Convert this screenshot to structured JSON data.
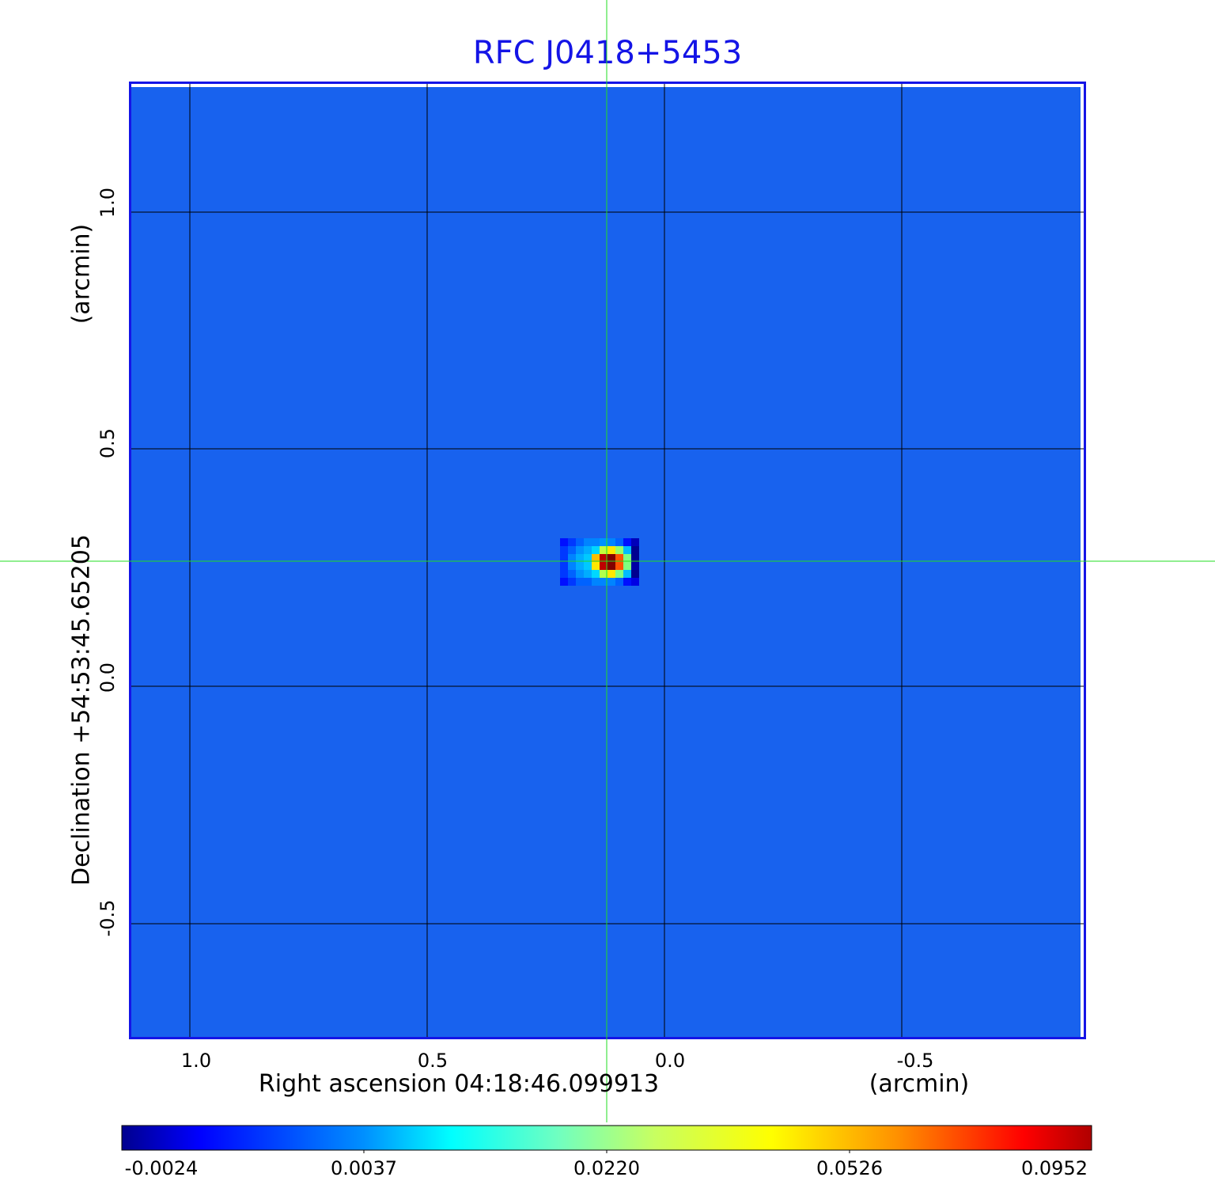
{
  "title": "RFC J0418+5453",
  "x_axis": {
    "label": "Right ascension  04:18:46.099913",
    "unit_label": "(arcmin)",
    "ticks": [
      "1.0",
      "0.5",
      "0.0",
      "-0.5"
    ]
  },
  "y_axis": {
    "label": "Declination  +54:53:45.65205",
    "unit_label": "(arcmin)",
    "ticks": [
      "1.0",
      "0.5",
      "0.0",
      "-0.5"
    ]
  },
  "colorbar": {
    "ticks": [
      "-0.0024",
      "0.0037",
      "0.0220",
      "0.0526",
      "0.0952"
    ]
  },
  "chart_data": {
    "type": "heatmap",
    "title": "RFC J0418+5453",
    "xlabel": "Right ascension  04:18:46.099913 (arcmin)",
    "ylabel": "Declination  +54:53:45.65205 (arcmin)",
    "x_ticks": [
      1.0,
      0.5,
      0.0,
      -0.5
    ],
    "y_ticks": [
      1.0,
      0.5,
      0.0,
      -0.5
    ],
    "xlim": [
      1.125,
      -0.885
    ],
    "ylim": [
      -0.74,
      1.27
    ],
    "grid": true,
    "colormap": "jet",
    "color_range": [
      -0.0024,
      0.0952
    ],
    "colorbar_ticks": [
      -0.0024,
      0.0037,
      0.022,
      0.0526,
      0.0952
    ],
    "background_value": 0.0008,
    "crosshair": {
      "x": 0.123,
      "y": 0.265
    },
    "source_peak": {
      "x": 0.12,
      "y": 0.265,
      "value": 0.0952
    },
    "source_grid": [
      [
        0.001,
        0.002,
        0.003,
        0.004,
        0.004,
        0.005,
        0.004,
        0.003,
        0.001,
        -0.001
      ],
      [
        0.002,
        0.003,
        0.005,
        0.007,
        0.01,
        0.03,
        0.04,
        0.025,
        0.008,
        -0.002
      ],
      [
        0.002,
        0.004,
        0.007,
        0.009,
        0.045,
        0.085,
        0.095,
        0.06,
        0.022,
        -0.002
      ],
      [
        0.002,
        0.004,
        0.007,
        0.009,
        0.04,
        0.085,
        0.095,
        0.06,
        0.022,
        -0.0015
      ],
      [
        0.002,
        0.003,
        0.005,
        0.007,
        0.01,
        0.028,
        0.04,
        0.022,
        0.008,
        -0.002
      ],
      [
        0.001,
        0.002,
        0.003,
        0.003,
        0.004,
        0.004,
        0.004,
        0.003,
        0.001,
        0.0
      ]
    ]
  }
}
